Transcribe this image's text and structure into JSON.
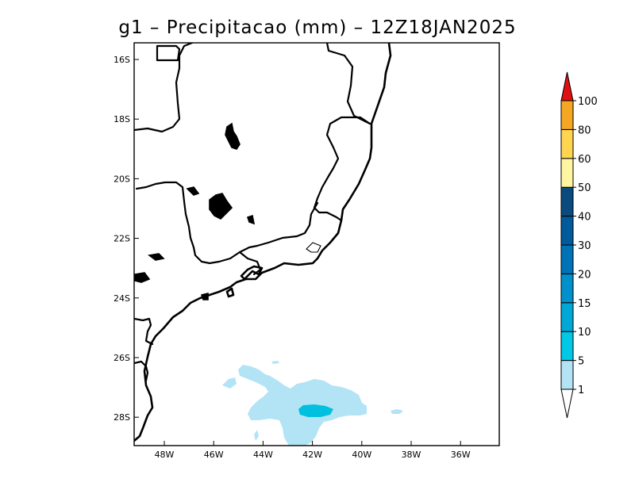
{
  "title": "g1  –  Precipitacao (mm)  –  12Z18JAN2025",
  "map": {
    "lon_range": [
      -49,
      -34
    ],
    "lat_range": [
      -29,
      -15
    ],
    "x_ticks": [
      {
        "lon": -48,
        "label": "48W"
      },
      {
        "lon": -46,
        "label": "46W"
      },
      {
        "lon": -44,
        "label": "44W"
      },
      {
        "lon": -42,
        "label": "42W"
      },
      {
        "lon": -40,
        "label": "40W"
      },
      {
        "lon": -38,
        "label": "38W"
      },
      {
        "lon": -36,
        "label": "36W"
      }
    ],
    "y_ticks": [
      {
        "lat": -16,
        "label": "16S"
      },
      {
        "lat": -18,
        "label": "18S"
      },
      {
        "lat": -20,
        "label": "20S"
      },
      {
        "lat": -22,
        "label": "22S"
      },
      {
        "lat": -24,
        "label": "24S"
      },
      {
        "lat": -26,
        "label": "26S"
      },
      {
        "lat": -28,
        "label": "28S"
      }
    ]
  },
  "colorbar": {
    "levels": [
      {
        "label": "1",
        "color": "#b3e4f5"
      },
      {
        "label": "5",
        "color": "#00c8e6"
      },
      {
        "label": "10",
        "color": "#00a8d8"
      },
      {
        "label": "15",
        "color": "#0090cc"
      },
      {
        "label": "20",
        "color": "#0072b8"
      },
      {
        "label": "30",
        "color": "#005a9c"
      },
      {
        "label": "40",
        "color": "#0a4a7c"
      },
      {
        "label": "50",
        "color": "#fff5a0"
      },
      {
        "label": "60",
        "color": "#ffd54f"
      },
      {
        "label": "80",
        "color": "#f5a623"
      },
      {
        "label": "100",
        "color": "#ee8a00"
      }
    ],
    "under_color": "#ffffff",
    "over_color": "#e01010"
  },
  "precip_colors": {
    "light": "#b3e4f5",
    "medium": "#00c0e0"
  }
}
